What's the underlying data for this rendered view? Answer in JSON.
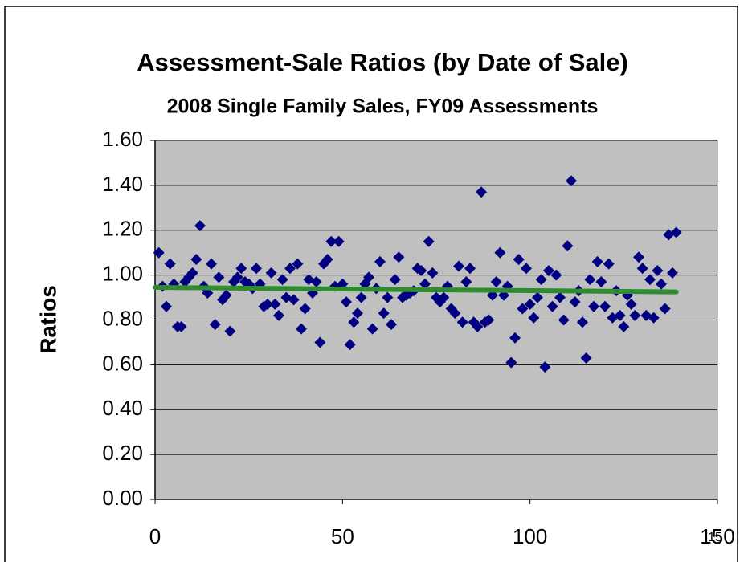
{
  "chart_data": {
    "type": "scatter",
    "title": "Assessment-Sale Ratios (by Date of Sale)",
    "subtitle": "2008 Single Family Sales, FY09 Assessments",
    "y_label": "Ratios",
    "page_number": "15",
    "xlim": [
      0,
      150
    ],
    "xticks": [
      0,
      50,
      100,
      150
    ],
    "ylim": [
      0,
      1.6
    ],
    "yticks": [
      {
        "value": 0,
        "label": "0.00"
      },
      {
        "value": 0.2,
        "label": "0.20"
      },
      {
        "value": 0.4,
        "label": "0.40"
      },
      {
        "value": 0.6,
        "label": "0.60"
      },
      {
        "value": 0.8,
        "label": "0.80"
      },
      {
        "value": 1.0,
        "label": "1.00"
      },
      {
        "value": 1.2,
        "label": "1.20"
      },
      {
        "value": 1.4,
        "label": "1.40"
      },
      {
        "value": 1.6,
        "label": "1.60"
      }
    ],
    "grid": true,
    "color": "#000080",
    "x": [
      1,
      2,
      3,
      4,
      5,
      6,
      7,
      8,
      9,
      10,
      11,
      12,
      13,
      14,
      15,
      16,
      17,
      18,
      19,
      20,
      21,
      22,
      23,
      24,
      25,
      26,
      27,
      28,
      29,
      30,
      31,
      32,
      33,
      34,
      35,
      36,
      37,
      38,
      39,
      40,
      41,
      42,
      43,
      44,
      45,
      46,
      47,
      48,
      49,
      50,
      51,
      52,
      53,
      54,
      55,
      56,
      57,
      58,
      59,
      60,
      61,
      62,
      63,
      64,
      65,
      66,
      67,
      68,
      69,
      70,
      71,
      72,
      73,
      74,
      75,
      76,
      77,
      78,
      79,
      80,
      81,
      82,
      83,
      84,
      85,
      86,
      87,
      88,
      89,
      90,
      91,
      92,
      93,
      94,
      95,
      96,
      97,
      98,
      99,
      100,
      101,
      102,
      103,
      104,
      105,
      106,
      107,
      108,
      109,
      110,
      111,
      112,
      113,
      114,
      115,
      116,
      117,
      118,
      119,
      120,
      121,
      122,
      123,
      124,
      125,
      126,
      127,
      128,
      129,
      130,
      131,
      132,
      133,
      134,
      135,
      136,
      137,
      138,
      139
    ],
    "values": [
      1.1,
      0.95,
      0.86,
      1.05,
      0.96,
      0.77,
      0.77,
      0.97,
      0.99,
      1.01,
      1.07,
      1.22,
      0.95,
      0.92,
      1.05,
      0.78,
      0.99,
      0.89,
      0.91,
      0.75,
      0.97,
      0.99,
      1.03,
      0.97,
      0.96,
      0.94,
      1.03,
      0.96,
      0.86,
      0.87,
      1.01,
      0.87,
      0.82,
      0.98,
      0.9,
      1.03,
      0.89,
      1.05,
      0.76,
      0.85,
      0.98,
      0.92,
      0.97,
      0.7,
      1.05,
      1.07,
      1.15,
      0.95,
      1.15,
      0.96,
      0.88,
      0.69,
      0.79,
      0.83,
      0.9,
      0.96,
      0.99,
      0.76,
      0.94,
      1.06,
      0.83,
      0.9,
      0.78,
      0.98,
      1.08,
      0.9,
      0.91,
      0.92,
      0.93,
      1.03,
      1.02,
      0.96,
      1.15,
      1.01,
      0.9,
      0.88,
      0.9,
      0.95,
      0.85,
      0.83,
      1.04,
      0.79,
      0.97,
      1.03,
      0.79,
      0.77,
      1.37,
      0.79,
      0.8,
      0.91,
      0.97,
      1.1,
      0.91,
      0.95,
      0.61,
      0.72,
      1.07,
      0.85,
      1.03,
      0.87,
      0.81,
      0.9,
      0.98,
      0.59,
      1.02,
      0.86,
      1.0,
      0.9,
      0.8,
      1.13,
      1.42,
      0.88,
      0.93,
      0.79,
      0.63,
      0.98,
      0.86,
      1.06,
      0.97,
      0.86,
      1.05,
      0.81,
      0.93,
      0.82,
      0.77,
      0.91,
      0.87,
      0.82,
      1.08,
      1.03,
      0.82,
      0.98,
      0.81,
      1.02,
      0.96,
      0.85,
      1.18,
      1.01,
      1.19
    ],
    "trendline": {
      "color": "#2e8b2e",
      "x": [
        0,
        139
      ],
      "values": [
        0.945,
        0.925
      ]
    }
  }
}
